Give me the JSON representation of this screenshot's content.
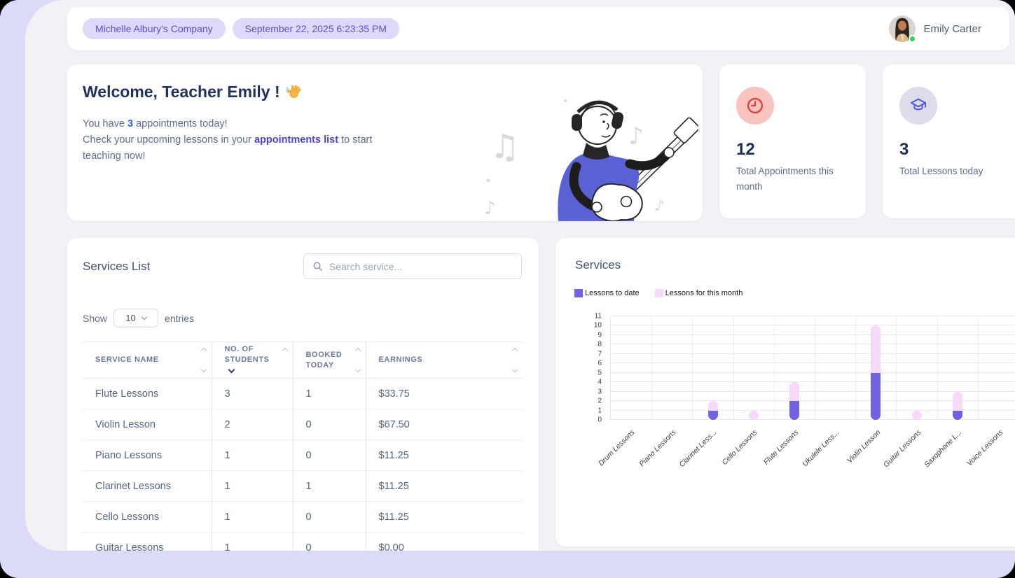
{
  "topbar": {
    "company_badge": "Michelle Albury's Company",
    "datetime_badge": "September 22, 2025 6:23:35 PM",
    "user_name": "Emily Carter"
  },
  "welcome": {
    "title": "Welcome, Teacher Emily !",
    "line1_prefix": "You have ",
    "appointments_count": "3",
    "line1_suffix": " appointments today!",
    "line2_prefix": "Check your upcoming lessons in your ",
    "line2_link": "appointments list",
    "line2_suffix": " to start teaching now!"
  },
  "stats": [
    {
      "icon": "clock-icon",
      "value": "12",
      "label": "Total Appointments this month"
    },
    {
      "icon": "graduation-cap-icon",
      "value": "3",
      "label": "Total Lessons today"
    }
  ],
  "services_list": {
    "title": "Services List",
    "search_placeholder": "Search service...",
    "show_label": "Show",
    "page_size": "10",
    "entries_label": "entries",
    "columns": [
      "Service Name",
      "No. of Students",
      "Booked Today",
      "Earnings"
    ],
    "sorted_column": "No. of Students",
    "sort_direction": "desc",
    "rows": [
      [
        "Flute Lessons",
        "3",
        "1",
        "$33.75"
      ],
      [
        "Violin Lesson",
        "2",
        "0",
        "$67.50"
      ],
      [
        "Piano Lessons",
        "1",
        "0",
        "$11.25"
      ],
      [
        "Clarinet Lessons",
        "1",
        "1",
        "$11.25"
      ],
      [
        "Cello Lessons",
        "1",
        "0",
        "$11.25"
      ],
      [
        "Guitar Lessons",
        "1",
        "0",
        "$0.00"
      ]
    ]
  },
  "services_chart": {
    "title": "Services"
  },
  "chart_data": {
    "type": "bar",
    "stacked": true,
    "title": "Services",
    "categories": [
      "Drum Lessons",
      "Piano Lessons",
      "Clarinet Less...",
      "Cello Lessons",
      "Flute Lessons",
      "Ukulele Less...",
      "Violin Lesson",
      "Guitar Lessons",
      "Saxophone L...",
      "Voice Lessons"
    ],
    "series": [
      {
        "name": "Lessons to date",
        "color": "#7062e2",
        "values": [
          0,
          0,
          1,
          0,
          2,
          0,
          5,
          0,
          1,
          0
        ]
      },
      {
        "name": "Lessons for this month",
        "color": "#f7d9f9",
        "values": [
          0,
          0,
          1,
          1,
          2,
          0,
          5,
          1,
          2,
          0
        ]
      }
    ],
    "xlabel": "",
    "ylabel": "",
    "ylim": [
      0,
      11
    ],
    "yticks": [
      0,
      1,
      2,
      3,
      4,
      5,
      6,
      7,
      8,
      9,
      10,
      11
    ],
    "grid": true,
    "legend_position": "top-left"
  },
  "colors": {
    "accent_purple": "#7062e2",
    "accent_pink": "#f7d9f9",
    "badge_bg": "#ded9f9",
    "badge_text": "#584fe0",
    "status_green": "#2fd05e",
    "clock_red": "#d9453c",
    "cap_purple": "#5553e6"
  }
}
